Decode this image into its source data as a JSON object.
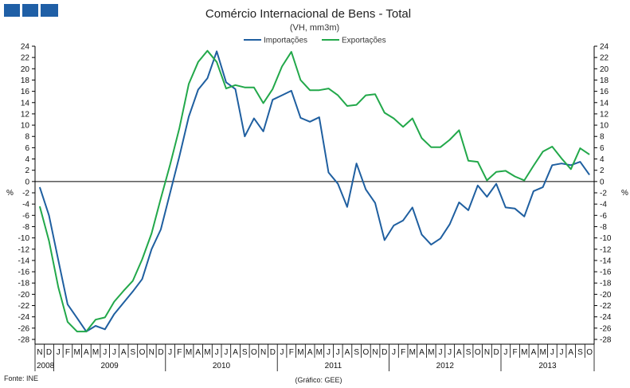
{
  "header": {
    "title": "Comércio Internacional de Bens - Total",
    "subtitle": "(VH, mm3m)"
  },
  "footer": {
    "source": "Fonte: INE",
    "credit": "(Gráfico: GEE)"
  },
  "logo": {
    "color": "#1f5fa6",
    "squares": 3
  },
  "chart_data": {
    "type": "line",
    "x": [
      "2008-11",
      "2008-12",
      "2009-01",
      "2009-02",
      "2009-03",
      "2009-04",
      "2009-05",
      "2009-06",
      "2009-07",
      "2009-08",
      "2009-09",
      "2009-10",
      "2009-11",
      "2009-12",
      "2010-01",
      "2010-02",
      "2010-03",
      "2010-04",
      "2010-05",
      "2010-06",
      "2010-07",
      "2010-08",
      "2010-09",
      "2010-10",
      "2010-11",
      "2010-12",
      "2011-01",
      "2011-02",
      "2011-03",
      "2011-04",
      "2011-05",
      "2011-06",
      "2011-07",
      "2011-08",
      "2011-09",
      "2011-10",
      "2011-11",
      "2011-12",
      "2012-01",
      "2012-02",
      "2012-03",
      "2012-04",
      "2012-05",
      "2012-06",
      "2012-07",
      "2012-08",
      "2012-09",
      "2012-10",
      "2012-11",
      "2012-12",
      "2013-01",
      "2013-02",
      "2013-03",
      "2013-04",
      "2013-05",
      "2013-06",
      "2013-07",
      "2013-08",
      "2013-09",
      "2013-10"
    ],
    "month_labels": [
      "N",
      "D",
      "J",
      "F",
      "M",
      "A",
      "M",
      "J",
      "J",
      "A",
      "S",
      "O",
      "N",
      "D",
      "J",
      "F",
      "M",
      "A",
      "M",
      "J",
      "J",
      "A",
      "S",
      "O",
      "N",
      "D",
      "J",
      "F",
      "M",
      "A",
      "M",
      "J",
      "J",
      "A",
      "S",
      "O",
      "N",
      "D",
      "J",
      "F",
      "M",
      "A",
      "M",
      "J",
      "J",
      "A",
      "S",
      "O",
      "N",
      "D",
      "J",
      "F",
      "M",
      "A",
      "M",
      "J",
      "J",
      "A",
      "S",
      "O"
    ],
    "year_groups": [
      {
        "label": "2008",
        "start": 0,
        "count": 2
      },
      {
        "label": "2009",
        "start": 2,
        "count": 12
      },
      {
        "label": "2010",
        "start": 14,
        "count": 12
      },
      {
        "label": "2011",
        "start": 26,
        "count": 12
      },
      {
        "label": "2012",
        "start": 38,
        "count": 12
      },
      {
        "label": "2013",
        "start": 50,
        "count": 10
      }
    ],
    "series": [
      {
        "name": "Importações",
        "color": "#1f5fa0",
        "values": [
          -1.0,
          -6.0,
          -14.0,
          -21.8,
          -24.2,
          -26.6,
          -25.6,
          -26.2,
          -23.5,
          -21.5,
          -19.5,
          -17.3,
          -12.0,
          -8.5,
          -2.0,
          4.5,
          11.5,
          16.3,
          18.3,
          23.1,
          17.6,
          16.4,
          8.0,
          11.2,
          8.9,
          14.5,
          15.3,
          16.1,
          11.3,
          10.6,
          11.4,
          1.6,
          -0.4,
          -4.5,
          3.2,
          -1.4,
          -3.8,
          -10.4,
          -7.8,
          -6.9,
          -4.6,
          -9.4,
          -11.2,
          -10.1,
          -7.6,
          -3.7,
          -5.1,
          -0.7,
          -2.7,
          -0.4,
          -4.6,
          -4.8,
          -6.2,
          -1.7,
          -1.0,
          2.9,
          3.2,
          2.9,
          3.5,
          1.2
        ]
      },
      {
        "name": "Exportações",
        "color": "#22a84a",
        "values": [
          -4.4,
          -10.5,
          -18.8,
          -24.9,
          -26.6,
          -26.6,
          -24.5,
          -24.1,
          -21.3,
          -19.4,
          -17.6,
          -13.8,
          -9.2,
          -3.0,
          3.0,
          9.5,
          17.3,
          21.2,
          23.2,
          21.2,
          16.5,
          17.1,
          16.7,
          16.7,
          13.9,
          16.4,
          20.4,
          23.0,
          18.0,
          16.2,
          16.2,
          16.5,
          15.3,
          13.4,
          13.6,
          15.3,
          15.5,
          12.2,
          11.2,
          9.7,
          11.2,
          7.7,
          6.1,
          6.1,
          7.4,
          9.1,
          3.7,
          3.5,
          0.2,
          1.7,
          1.9,
          0.9,
          0.2,
          2.8,
          5.3,
          6.2,
          4.1,
          2.2,
          5.9,
          4.8
        ]
      }
    ],
    "ylim": [
      -28,
      24
    ],
    "ytick_step": 2,
    "ylabel_left": "%",
    "ylabel_right": "%",
    "legend_position": "top-center",
    "grid": false
  }
}
